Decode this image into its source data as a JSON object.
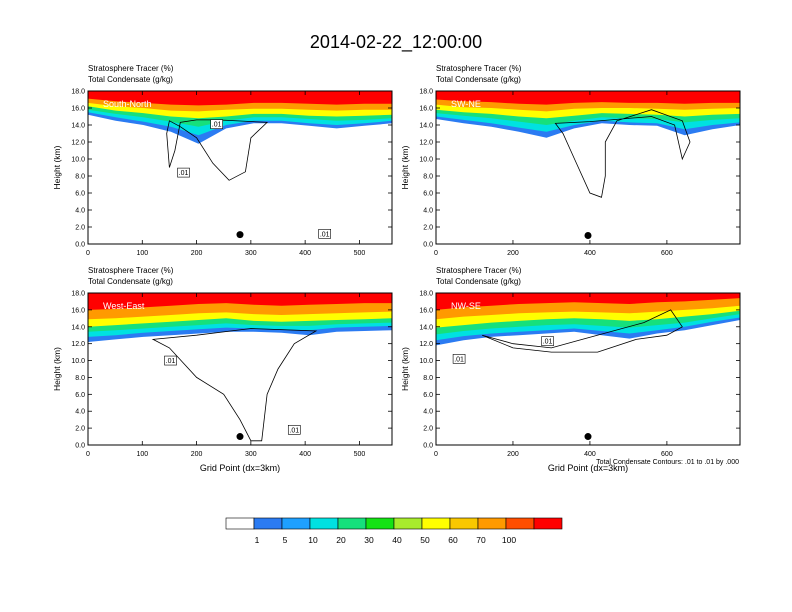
{
  "figure": {
    "title": "2014-02-22_12:00:00",
    "footnote": "Total Condensate Contours: .01 to .01 by .000"
  },
  "colorbar": {
    "colors": [
      "#ffffff",
      "#2b7bf2",
      "#1ea0ff",
      "#00e1e1",
      "#16e07c",
      "#14e314",
      "#a8ec2c",
      "#ffff00",
      "#f9c800",
      "#ff9a00",
      "#ff4e00",
      "#ff0000"
    ],
    "labels": [
      "1",
      "5",
      "10",
      "20",
      "30",
      "40",
      "50",
      "60",
      "70",
      "100"
    ]
  },
  "chart_data": [
    {
      "type": "heatmap",
      "panel": "South-North",
      "left_string": "Stratosphere Tracer   (%)",
      "left_string2": "Total Condensate   (g/kg)",
      "ylabel": "Height (km)",
      "xlabel": "",
      "ylim": [
        0,
        18
      ],
      "xlim": [
        0,
        560
      ],
      "yticks": [
        "0.0",
        "2.0",
        "4.0",
        "6.0",
        "8.0",
        "10.0",
        "12.0",
        "14.0",
        "16.0",
        "18.0"
      ],
      "xticks": [
        {
          "v": 0,
          "t": "0"
        },
        {
          "v": 100,
          "t": "100"
        },
        {
          "v": 200,
          "t": "200"
        },
        {
          "v": 300,
          "t": "300"
        },
        {
          "v": 400,
          "t": "400"
        },
        {
          "v": 500,
          "t": "500"
        }
      ],
      "marker": {
        "x": 280,
        "y": 1.1
      },
      "contour_labels": [
        {
          "x": 237,
          "y": 14.1,
          "t": ".01"
        },
        {
          "x": 176,
          "y": 8.4,
          "t": ".01"
        },
        {
          "x": 436,
          "y": 1.2,
          "t": ".01"
        }
      ],
      "cloud": [
        [
          150,
          14.5
        ],
        [
          170,
          13.8
        ],
        [
          200,
          12.5
        ],
        [
          230,
          9.5
        ],
        [
          260,
          7.5
        ],
        [
          290,
          8.5
        ],
        [
          300,
          12.5
        ],
        [
          330,
          14.3
        ],
        [
          240,
          14.6
        ],
        [
          200,
          14.6
        ],
        [
          170,
          14.3
        ],
        [
          160,
          11.0
        ],
        [
          150,
          9.0
        ],
        [
          145,
          13.0
        ]
      ],
      "layers": [
        {
          "pct": 1,
          "b": [
            15.2,
            14.5,
            14.0,
            13.2,
            11.8,
            13.6,
            14.2,
            14.2,
            13.9,
            13.6,
            13.9,
            14.2
          ]
        },
        {
          "pct": 10,
          "b": [
            15.5,
            14.9,
            14.4,
            13.8,
            12.8,
            14.0,
            14.5,
            14.5,
            14.2,
            14.0,
            14.2,
            14.5
          ]
        },
        {
          "pct": 30,
          "b": [
            15.8,
            15.3,
            14.9,
            14.4,
            13.8,
            14.5,
            14.9,
            14.9,
            14.7,
            14.5,
            14.6,
            14.8
          ]
        },
        {
          "pct": 50,
          "b": [
            16.2,
            15.7,
            15.4,
            15.0,
            14.8,
            15.0,
            15.3,
            15.3,
            15.1,
            15.0,
            15.1,
            15.2
          ]
        },
        {
          "pct": 70,
          "b": [
            16.6,
            16.2,
            16.0,
            15.7,
            15.6,
            15.8,
            15.9,
            15.9,
            15.8,
            15.7,
            15.8,
            15.8
          ]
        },
        {
          "pct": 100,
          "b": [
            17.1,
            16.8,
            16.6,
            16.4,
            16.3,
            16.4,
            16.6,
            16.6,
            16.5,
            16.4,
            16.5,
            16.5
          ]
        }
      ]
    },
    {
      "type": "heatmap",
      "panel": "SW-NE",
      "left_string": "Stratosphere Tracer   (%)",
      "left_string2": "Total Condensate   (g/kg)",
      "ylabel": "Height (km)",
      "xlabel": "",
      "ylim": [
        0,
        18
      ],
      "xlim": [
        0,
        790
      ],
      "yticks": [
        "0.0",
        "2.0",
        "4.0",
        "6.0",
        "8.0",
        "10.0",
        "12.0",
        "14.0",
        "16.0",
        "18.0"
      ],
      "xticks": [
        {
          "v": 0,
          "t": "0"
        },
        {
          "v": 200,
          "t": "200"
        },
        {
          "v": 400,
          "t": "400"
        },
        {
          "v": 600,
          "t": "600"
        }
      ],
      "marker": {
        "x": 395,
        "y": 1.0
      },
      "contour_labels": [],
      "cloud": [
        [
          310,
          14.2
        ],
        [
          330,
          13.0
        ],
        [
          360,
          10.0
        ],
        [
          400,
          6.0
        ],
        [
          430,
          5.5
        ],
        [
          440,
          8.0
        ],
        [
          440,
          12.0
        ],
        [
          470,
          14.5
        ],
        [
          560,
          15.8
        ],
        [
          640,
          14.5
        ],
        [
          660,
          12.0
        ],
        [
          640,
          10.0
        ],
        [
          620,
          14.0
        ],
        [
          560,
          15.0
        ],
        [
          400,
          14.4
        ]
      ],
      "layers": [
        {
          "pct": 1,
          "b": [
            14.7,
            14.2,
            13.8,
            13.2,
            12.5,
            13.6,
            14.2,
            14.0,
            13.9,
            12.8,
            13.5,
            14.0
          ]
        },
        {
          "pct": 10,
          "b": [
            15.0,
            14.6,
            14.2,
            13.7,
            13.2,
            14.0,
            14.5,
            14.3,
            14.2,
            13.5,
            14.0,
            14.3
          ]
        },
        {
          "pct": 30,
          "b": [
            15.4,
            15.1,
            14.8,
            14.4,
            14.0,
            14.5,
            14.9,
            14.8,
            14.7,
            14.3,
            14.6,
            14.8
          ]
        },
        {
          "pct": 50,
          "b": [
            15.8,
            15.5,
            15.3,
            15.0,
            14.8,
            15.1,
            15.4,
            15.3,
            15.2,
            15.0,
            15.2,
            15.3
          ]
        },
        {
          "pct": 70,
          "b": [
            16.4,
            16.1,
            16.0,
            15.8,
            15.6,
            15.9,
            16.0,
            16.0,
            15.9,
            15.8,
            15.9,
            16.0
          ]
        },
        {
          "pct": 100,
          "b": [
            17.0,
            16.8,
            16.7,
            16.5,
            16.4,
            16.6,
            16.7,
            16.6,
            16.6,
            16.5,
            16.6,
            16.6
          ]
        }
      ]
    },
    {
      "type": "heatmap",
      "panel": "West-East",
      "left_string": "Stratosphere Tracer   (%)",
      "left_string2": "Total Condensate   (g/kg)",
      "ylabel": "Height (km)",
      "xlabel": "Grid Point (dx=3km)",
      "ylim": [
        0,
        18
      ],
      "xlim": [
        0,
        560
      ],
      "yticks": [
        "0.0",
        "2.0",
        "4.0",
        "6.0",
        "8.0",
        "10.0",
        "12.0",
        "14.0",
        "16.0",
        "18.0"
      ],
      "xticks": [
        {
          "v": 0,
          "t": "0"
        },
        {
          "v": 100,
          "t": "100"
        },
        {
          "v": 200,
          "t": "200"
        },
        {
          "v": 300,
          "t": "300"
        },
        {
          "v": 400,
          "t": "400"
        },
        {
          "v": 500,
          "t": "500"
        }
      ],
      "marker": {
        "x": 280,
        "y": 1.0
      },
      "contour_labels": [
        {
          "x": 152,
          "y": 10.0,
          "t": ".01"
        },
        {
          "x": 380,
          "y": 1.8,
          "t": ".01"
        }
      ],
      "cloud": [
        [
          120,
          12.5
        ],
        [
          150,
          11.5
        ],
        [
          200,
          8.0
        ],
        [
          250,
          6.0
        ],
        [
          280,
          3.0
        ],
        [
          300,
          0.5
        ],
        [
          320,
          0.5
        ],
        [
          330,
          6.0
        ],
        [
          350,
          9.0
        ],
        [
          380,
          12.0
        ],
        [
          420,
          13.5
        ],
        [
          300,
          13.8
        ],
        [
          200,
          13.0
        ]
      ],
      "layers": [
        {
          "pct": 1,
          "b": [
            12.2,
            12.5,
            12.8,
            13.0,
            13.2,
            13.4,
            13.4,
            13.3,
            13.0,
            13.4,
            13.5,
            13.6
          ]
        },
        {
          "pct": 10,
          "b": [
            12.8,
            13.0,
            13.3,
            13.5,
            13.7,
            13.9,
            13.8,
            13.7,
            13.6,
            13.9,
            14.0,
            14.1
          ]
        },
        {
          "pct": 30,
          "b": [
            13.4,
            13.6,
            13.8,
            14.0,
            14.2,
            14.4,
            14.2,
            14.1,
            14.1,
            14.3,
            14.4,
            14.5
          ]
        },
        {
          "pct": 50,
          "b": [
            14.0,
            14.2,
            14.4,
            14.6,
            14.8,
            15.0,
            14.7,
            14.6,
            14.7,
            14.8,
            14.9,
            15.0
          ]
        },
        {
          "pct": 70,
          "b": [
            14.9,
            15.0,
            15.2,
            15.4,
            15.6,
            15.7,
            15.5,
            15.4,
            15.5,
            15.6,
            15.7,
            15.8
          ]
        },
        {
          "pct": 100,
          "b": [
            16.0,
            16.1,
            16.3,
            16.5,
            16.7,
            16.8,
            16.6,
            16.5,
            16.6,
            16.7,
            16.8,
            16.8
          ]
        }
      ]
    },
    {
      "type": "heatmap",
      "panel": "NW-SE",
      "left_string": "Stratosphere Tracer   (%)",
      "left_string2": "Total Condensate   (g/kg)",
      "ylabel": "Height (km)",
      "xlabel": "Grid Point (dx=3km)",
      "ylim": [
        0,
        18
      ],
      "xlim": [
        0,
        790
      ],
      "yticks": [
        "0.0",
        "2.0",
        "4.0",
        "6.0",
        "8.0",
        "10.0",
        "12.0",
        "14.0",
        "16.0",
        "18.0"
      ],
      "xticks": [
        {
          "v": 0,
          "t": "0"
        },
        {
          "v": 200,
          "t": "200"
        },
        {
          "v": 400,
          "t": "400"
        },
        {
          "v": 600,
          "t": "600"
        }
      ],
      "marker": {
        "x": 395,
        "y": 1.0
      },
      "contour_labels": [
        {
          "x": 60,
          "y": 10.2,
          "t": ".01"
        },
        {
          "x": 290,
          "y": 12.3,
          "t": ".01"
        }
      ],
      "cloud": [
        [
          120,
          13.0
        ],
        [
          200,
          12.0
        ],
        [
          300,
          11.5
        ],
        [
          380,
          12.5
        ],
        [
          460,
          13.5
        ],
        [
          540,
          14.5
        ],
        [
          610,
          16.0
        ],
        [
          640,
          14.0
        ],
        [
          600,
          13.0
        ],
        [
          520,
          12.5
        ],
        [
          420,
          11.0
        ],
        [
          300,
          11.0
        ],
        [
          200,
          11.5
        ]
      ],
      "layers": [
        {
          "pct": 1,
          "b": [
            11.8,
            12.4,
            12.8,
            13.0,
            13.2,
            13.4,
            13.0,
            12.6,
            13.2,
            13.6,
            14.2,
            14.8
          ]
        },
        {
          "pct": 10,
          "b": [
            12.4,
            12.9,
            13.2,
            13.4,
            13.6,
            13.8,
            13.5,
            13.2,
            13.6,
            14.0,
            14.6,
            15.1
          ]
        },
        {
          "pct": 30,
          "b": [
            13.1,
            13.5,
            13.8,
            14.0,
            14.2,
            14.3,
            14.1,
            13.9,
            14.2,
            14.5,
            15.0,
            15.5
          ]
        },
        {
          "pct": 50,
          "b": [
            13.9,
            14.2,
            14.5,
            14.7,
            14.9,
            15.0,
            14.9,
            14.7,
            14.9,
            15.2,
            15.5,
            15.9
          ]
        },
        {
          "pct": 70,
          "b": [
            14.9,
            15.2,
            15.4,
            15.6,
            15.7,
            15.8,
            15.7,
            15.6,
            15.8,
            16.0,
            16.2,
            16.5
          ]
        },
        {
          "pct": 100,
          "b": [
            16.0,
            16.3,
            16.5,
            16.7,
            16.8,
            16.9,
            16.8,
            16.7,
            16.9,
            17.0,
            17.2,
            17.4
          ]
        }
      ]
    }
  ]
}
